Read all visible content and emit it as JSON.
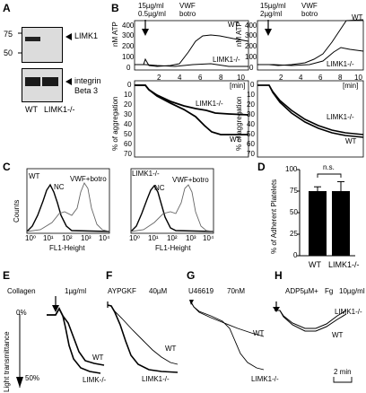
{
  "panels": {
    "A": {
      "label": "A",
      "mw_markers": [
        "75",
        "50"
      ],
      "band_labels": [
        "LIMK1",
        "integrin",
        "Beta 3"
      ],
      "lanes": [
        "WT",
        "LIMK1-/-"
      ]
    },
    "B": {
      "label": "B",
      "left": {
        "conditions": [
          "15µg/ml",
          "0.5µg/ml"
        ],
        "agonist": "VWF",
        "agonist2": "botro",
        "atp_ylabel": "nM ATP",
        "atp_ticks": [
          "400",
          "300",
          "200",
          "100",
          "0"
        ],
        "x_ticks": [
          "2",
          "4",
          "6",
          "8",
          "10"
        ],
        "x_unit": "[min]",
        "agg_ylabel": "% of aggregation",
        "agg_ticks": [
          "0",
          "10",
          "20",
          "30",
          "40",
          "50",
          "60",
          "70"
        ],
        "series": [
          "WT",
          "LIMK1-/-"
        ]
      },
      "right": {
        "conditions": [
          "15µg/ml",
          "2µg/ml"
        ],
        "agonist": "VWF",
        "agonist2": "botro",
        "atp_ylabel": "nM ATP",
        "atp_ticks": [
          "400",
          "300",
          "200",
          "100",
          "0"
        ],
        "x_ticks": [
          "2",
          "4",
          "6",
          "8",
          "10"
        ],
        "x_unit": "[min]",
        "agg_ylabel": "% of aggregation",
        "agg_ticks": [
          "0",
          "10",
          "20",
          "30",
          "40",
          "50",
          "60",
          "70"
        ],
        "series": [
          "WT",
          "LIMK1-/-"
        ]
      }
    },
    "C": {
      "label": "C",
      "left": {
        "genotype": "WT",
        "nc": "NC",
        "stim": "VWF+botro"
      },
      "right": {
        "genotype": "LIMK1-/-",
        "nc": "NC",
        "stim": "VWF+botro"
      },
      "ylabel": "Counts",
      "xlabel": "FL1-Height",
      "x_ticks": [
        "10⁰",
        "10¹",
        "10²",
        "10³",
        "10⁴"
      ]
    },
    "D": {
      "label": "D",
      "ylabel": "% of Adherent Platelets",
      "y_ticks": [
        "100",
        "75",
        "50",
        "25",
        "0"
      ],
      "sig": "n.s.",
      "categories": [
        "WT",
        "LIMK1-/-"
      ]
    },
    "E": {
      "label": "E",
      "agonist": "Collagen",
      "dose": "1µg/ml",
      "series": [
        "WT",
        "LIMK-/-"
      ],
      "y_top": "0%",
      "y_bottom": "50%",
      "ylabel": "Light transmittance"
    },
    "F": {
      "label": "F",
      "agonist": "AYPGKF",
      "dose": "40µM",
      "series": [
        "WT",
        "LIMK1-/-"
      ]
    },
    "G": {
      "label": "G",
      "agonist": "U46619",
      "dose": "70nM",
      "series": [
        "WT",
        "LIMK1-/-"
      ]
    },
    "H": {
      "label": "H",
      "agonist": "ADP5µM+",
      "agonist2": "Fg",
      "dose": "10µg/ml",
      "series": [
        "LIMK1-/-",
        "WT"
      ],
      "scale": "2 min"
    }
  },
  "chart_data": [
    {
      "type": "bar",
      "title": "",
      "ylabel": "% of Adherent Platelets",
      "categories": [
        "WT",
        "LIMK1-/-"
      ],
      "values": [
        75,
        75
      ],
      "errors": [
        5,
        11
      ],
      "ylim": [
        0,
        100
      ]
    }
  ]
}
